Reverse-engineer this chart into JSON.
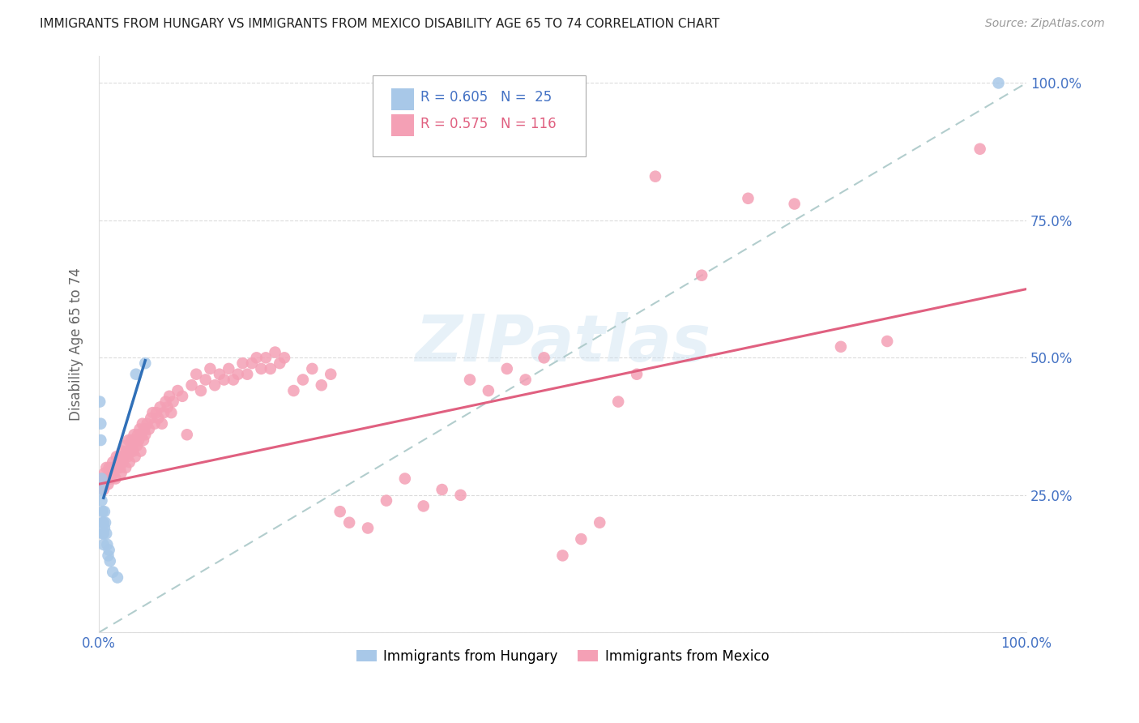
{
  "title": "IMMIGRANTS FROM HUNGARY VS IMMIGRANTS FROM MEXICO DISABILITY AGE 65 TO 74 CORRELATION CHART",
  "source": "Source: ZipAtlas.com",
  "ylabel": "Disability Age 65 to 74",
  "xlim": [
    0,
    1.0
  ],
  "ylim": [
    0,
    1.05
  ],
  "hungary_color": "#a8c8e8",
  "mexico_color": "#f4a0b5",
  "hungary_line_color": "#3070b8",
  "mexico_line_color": "#e06080",
  "ref_line_color": "#aac8c8",
  "legend_hungary_r": "R = 0.605",
  "legend_hungary_n": "N =  25",
  "legend_mexico_r": "R = 0.575",
  "legend_mexico_n": "N = 116",
  "legend_hungary_label": "Immigrants from Hungary",
  "legend_mexico_label": "Immigrants from Mexico",
  "watermark": "ZIPatlas",
  "background_color": "#ffffff",
  "grid_color": "#cccccc",
  "title_color": "#222222",
  "axis_label_color": "#666666",
  "tick_label_color": "#4472c4",
  "hungary_scatter": [
    [
      0.001,
      0.42
    ],
    [
      0.002,
      0.38
    ],
    [
      0.002,
      0.35
    ],
    [
      0.003,
      0.28
    ],
    [
      0.003,
      0.26
    ],
    [
      0.003,
      0.24
    ],
    [
      0.004,
      0.22
    ],
    [
      0.004,
      0.2
    ],
    [
      0.004,
      0.18
    ],
    [
      0.005,
      0.2
    ],
    [
      0.005,
      0.18
    ],
    [
      0.005,
      0.16
    ],
    [
      0.006,
      0.22
    ],
    [
      0.006,
      0.19
    ],
    [
      0.007,
      0.2
    ],
    [
      0.008,
      0.18
    ],
    [
      0.009,
      0.16
    ],
    [
      0.01,
      0.14
    ],
    [
      0.011,
      0.15
    ],
    [
      0.012,
      0.13
    ],
    [
      0.015,
      0.11
    ],
    [
      0.02,
      0.1
    ],
    [
      0.04,
      0.47
    ],
    [
      0.05,
      0.49
    ],
    [
      0.97,
      1.0
    ]
  ],
  "mexico_scatter": [
    [
      0.003,
      0.27
    ],
    [
      0.004,
      0.28
    ],
    [
      0.005,
      0.26
    ],
    [
      0.006,
      0.29
    ],
    [
      0.007,
      0.28
    ],
    [
      0.008,
      0.3
    ],
    [
      0.009,
      0.28
    ],
    [
      0.01,
      0.27
    ],
    [
      0.011,
      0.3
    ],
    [
      0.012,
      0.29
    ],
    [
      0.013,
      0.28
    ],
    [
      0.014,
      0.3
    ],
    [
      0.015,
      0.31
    ],
    [
      0.016,
      0.29
    ],
    [
      0.017,
      0.3
    ],
    [
      0.018,
      0.28
    ],
    [
      0.019,
      0.32
    ],
    [
      0.02,
      0.3
    ],
    [
      0.021,
      0.31
    ],
    [
      0.022,
      0.32
    ],
    [
      0.023,
      0.3
    ],
    [
      0.024,
      0.29
    ],
    [
      0.025,
      0.33
    ],
    [
      0.026,
      0.31
    ],
    [
      0.027,
      0.32
    ],
    [
      0.028,
      0.34
    ],
    [
      0.029,
      0.3
    ],
    [
      0.03,
      0.33
    ],
    [
      0.031,
      0.32
    ],
    [
      0.032,
      0.35
    ],
    [
      0.033,
      0.31
    ],
    [
      0.034,
      0.33
    ],
    [
      0.035,
      0.35
    ],
    [
      0.036,
      0.34
    ],
    [
      0.037,
      0.33
    ],
    [
      0.038,
      0.36
    ],
    [
      0.039,
      0.32
    ],
    [
      0.04,
      0.35
    ],
    [
      0.041,
      0.34
    ],
    [
      0.042,
      0.36
    ],
    [
      0.043,
      0.35
    ],
    [
      0.044,
      0.37
    ],
    [
      0.045,
      0.33
    ],
    [
      0.046,
      0.36
    ],
    [
      0.047,
      0.38
    ],
    [
      0.048,
      0.35
    ],
    [
      0.049,
      0.37
    ],
    [
      0.05,
      0.36
    ],
    [
      0.052,
      0.38
    ],
    [
      0.054,
      0.37
    ],
    [
      0.056,
      0.39
    ],
    [
      0.058,
      0.4
    ],
    [
      0.06,
      0.38
    ],
    [
      0.062,
      0.4
    ],
    [
      0.064,
      0.39
    ],
    [
      0.066,
      0.41
    ],
    [
      0.068,
      0.38
    ],
    [
      0.07,
      0.4
    ],
    [
      0.072,
      0.42
    ],
    [
      0.074,
      0.41
    ],
    [
      0.076,
      0.43
    ],
    [
      0.078,
      0.4
    ],
    [
      0.08,
      0.42
    ],
    [
      0.085,
      0.44
    ],
    [
      0.09,
      0.43
    ],
    [
      0.095,
      0.36
    ],
    [
      0.1,
      0.45
    ],
    [
      0.105,
      0.47
    ],
    [
      0.11,
      0.44
    ],
    [
      0.115,
      0.46
    ],
    [
      0.12,
      0.48
    ],
    [
      0.125,
      0.45
    ],
    [
      0.13,
      0.47
    ],
    [
      0.135,
      0.46
    ],
    [
      0.14,
      0.48
    ],
    [
      0.145,
      0.46
    ],
    [
      0.15,
      0.47
    ],
    [
      0.155,
      0.49
    ],
    [
      0.16,
      0.47
    ],
    [
      0.165,
      0.49
    ],
    [
      0.17,
      0.5
    ],
    [
      0.175,
      0.48
    ],
    [
      0.18,
      0.5
    ],
    [
      0.185,
      0.48
    ],
    [
      0.19,
      0.51
    ],
    [
      0.195,
      0.49
    ],
    [
      0.2,
      0.5
    ],
    [
      0.21,
      0.44
    ],
    [
      0.22,
      0.46
    ],
    [
      0.23,
      0.48
    ],
    [
      0.24,
      0.45
    ],
    [
      0.25,
      0.47
    ],
    [
      0.26,
      0.22
    ],
    [
      0.27,
      0.2
    ],
    [
      0.29,
      0.19
    ],
    [
      0.31,
      0.24
    ],
    [
      0.33,
      0.28
    ],
    [
      0.35,
      0.23
    ],
    [
      0.37,
      0.26
    ],
    [
      0.39,
      0.25
    ],
    [
      0.4,
      0.46
    ],
    [
      0.42,
      0.44
    ],
    [
      0.44,
      0.48
    ],
    [
      0.46,
      0.46
    ],
    [
      0.48,
      0.5
    ],
    [
      0.5,
      0.14
    ],
    [
      0.52,
      0.17
    ],
    [
      0.54,
      0.2
    ],
    [
      0.56,
      0.42
    ],
    [
      0.58,
      0.47
    ],
    [
      0.6,
      0.83
    ],
    [
      0.65,
      0.65
    ],
    [
      0.7,
      0.79
    ],
    [
      0.75,
      0.78
    ],
    [
      0.8,
      0.52
    ],
    [
      0.85,
      0.53
    ],
    [
      0.95,
      0.88
    ]
  ],
  "mexico_line_y_at_0": 0.27,
  "mexico_line_y_at_1": 0.625,
  "hungary_line_x0": 0.005,
  "hungary_line_y0": 0.245,
  "hungary_line_x1": 0.05,
  "hungary_line_y1": 0.495
}
